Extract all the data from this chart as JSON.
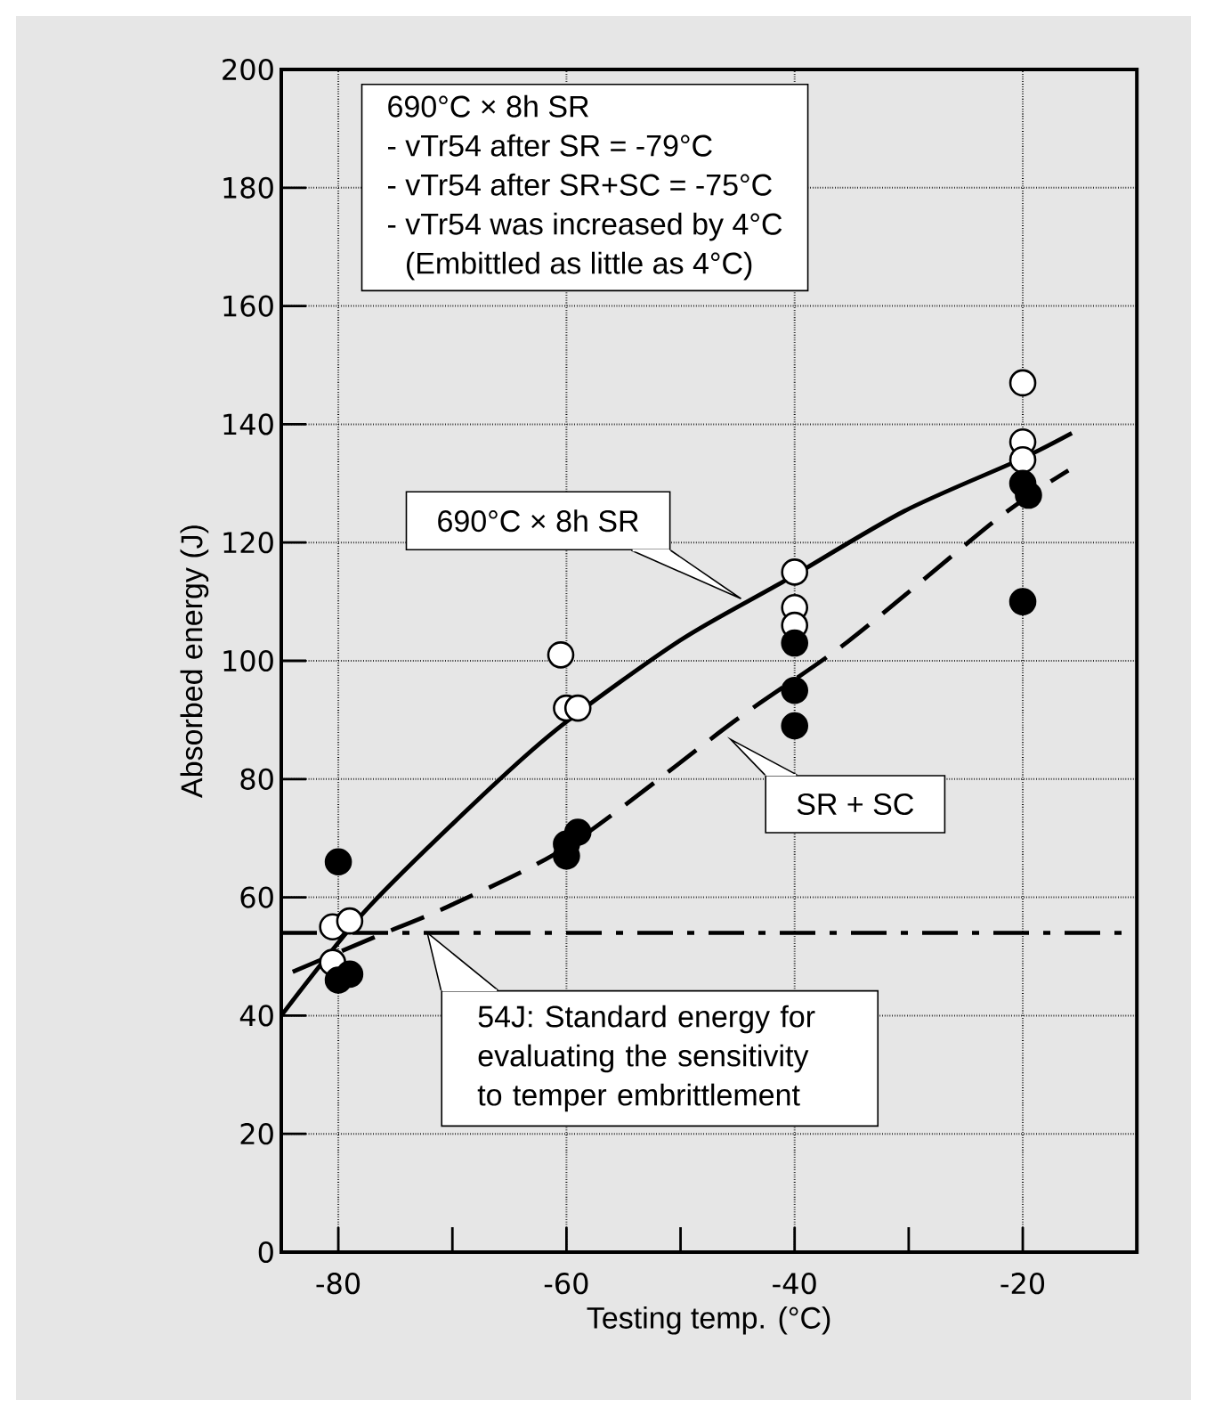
{
  "chart_data": {
    "type": "scatter",
    "xlabel": "Testing temp. (°C)",
    "ylabel": "Absorbed energy (J)",
    "xlim": [
      -85,
      -10
    ],
    "ylim": [
      0,
      200
    ],
    "xticks": [
      -80,
      {
        "value": -70,
        "label": null
      },
      -60,
      {
        "value": -50,
        "label": null
      },
      -40,
      {
        "value": -30,
        "label": null
      },
      -20
    ],
    "yticks": [
      0,
      20,
      40,
      60,
      80,
      100,
      120,
      140,
      160,
      180,
      200
    ],
    "grid": true,
    "series": [
      {
        "marker": "circle",
        "color": "#ffffff",
        "x": [
          -80.5,
          -80.5,
          -79,
          -60.5,
          -60,
          -59,
          -40,
          -40,
          -40,
          -20,
          -20,
          -20
        ],
        "values": [
          55,
          49,
          56,
          101,
          92,
          92,
          115,
          109,
          106,
          147,
          137,
          134
        ]
      },
      {
        "marker": "circle",
        "color": "#000000",
        "x": [
          -80,
          -80,
          -79,
          -60,
          -60,
          -59,
          -40,
          -40,
          -40,
          -20,
          -20,
          -19.5
        ],
        "values": [
          66,
          46,
          47,
          67,
          69,
          71,
          103,
          95,
          89,
          130,
          110,
          128
        ]
      },
      {
        "type": "line",
        "color": "#000000",
        "line_style": "solid",
        "x": [
          -85,
          -77.5,
          -66.6,
          -60.2,
          -50,
          -40.9,
          -30.4,
          -20.4,
          -15.7
        ],
        "values": [
          40,
          58,
          78.6,
          89.4,
          103.5,
          113.5,
          125.3,
          133.9,
          138.5
        ]
      },
      {
        "type": "line",
        "color": "#000000",
        "line_style": "dashed",
        "x": [
          -84,
          -76.8,
          -70.1,
          -59.6,
          -45.2,
          -35.3,
          -22.1,
          -16
        ],
        "values": [
          47.4,
          53.3,
          58.7,
          69,
          89.9,
          103.3,
          124.2,
          132.2
        ]
      }
    ],
    "ref_lines": [
      {
        "axis": "y",
        "value": 54,
        "line_style": "dashdot",
        "label": "54J: Standard energy for evaluating the sensitivity to temper embrittlement"
      }
    ],
    "annotations": [
      "690°C × 8h SR",
      "- vTr54 after SR = -79°C",
      "- vTr54 after SR+SC = -75°C",
      "- vTr54 was increased by 4°C",
      "(Embittled as little as 4°C)",
      "690°C × 8h SR",
      "SR + SC"
    ]
  }
}
